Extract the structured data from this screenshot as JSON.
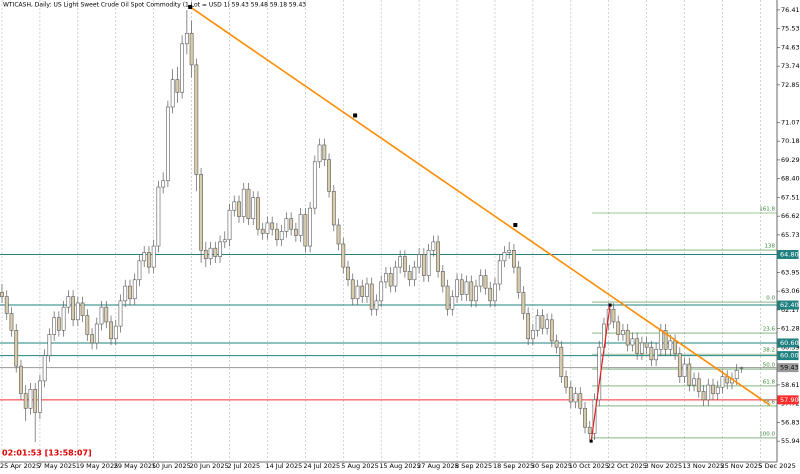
{
  "chart_data": {
    "type": "candlestick",
    "title": "WTICASH, Daily:  US Light Sweet Crude Oil Spot Commodity  (1 Lot = USD 1)  59.43 59.48 59.18 59.43",
    "timer": "02:01:53 [13:58:07]",
    "ylim": [
      54.95,
      76.88
    ],
    "yticks": [
      {
        "value": 76.41,
        "label": "76.41"
      },
      {
        "value": 75.53,
        "label": "75.53"
      },
      {
        "value": 74.63,
        "label": "74.63"
      },
      {
        "value": 73.74,
        "label": "73.74"
      },
      {
        "value": 72.85,
        "label": "72.85"
      },
      {
        "value": 71.07,
        "label": "71.07"
      },
      {
        "value": 70.18,
        "label": "70.18"
      },
      {
        "value": 69.29,
        "label": "69.29"
      },
      {
        "value": 68.4,
        "label": "68.40"
      },
      {
        "value": 67.51,
        "label": "67.51"
      },
      {
        "value": 66.62,
        "label": "66.62"
      },
      {
        "value": 65.73,
        "label": "65.73"
      },
      {
        "value": 63.95,
        "label": "63.95"
      },
      {
        "value": 63.06,
        "label": "63.06"
      },
      {
        "value": 62.17,
        "label": "62.17"
      },
      {
        "value": 61.28,
        "label": "61.28"
      },
      {
        "value": 60.39,
        "label": "60.39"
      },
      {
        "value": 58.61,
        "label": "58.61"
      },
      {
        "value": 57.72,
        "label": "57.72"
      },
      {
        "value": 56.83,
        "label": "56.83"
      },
      {
        "value": 55.94,
        "label": "55.94"
      }
    ],
    "dates": [
      "25 Apr 2025",
      "7 May 2025",
      "19 May 2025",
      "29 May 2025",
      "10 Jun 2025",
      "20 Jun 2025",
      "2 Jul 2025",
      "14 Jul 2025",
      "24 Jul 2025",
      "5 Aug 2025",
      "15 Aug 2025",
      "27 Aug 2025",
      "8 Sep 2025",
      "18 Sep 2025",
      "30 Sep 2025",
      "10 Oct 2025",
      "22 Oct 2025",
      "3 Nov 2025",
      "13 Nov 2025",
      "25 Nov 2025",
      "5 Dec 2025"
    ],
    "up_color": "#ffffff",
    "down_color": "#d9ccaa",
    "outline_color": "#5a5a5a",
    "candles": [
      [
        63.0,
        63.4,
        62.5,
        62.8
      ],
      [
        62.8,
        63.1,
        61.7,
        62.0
      ],
      [
        62.0,
        62.3,
        60.9,
        61.2
      ],
      [
        61.2,
        61.5,
        59.2,
        59.5
      ],
      [
        59.5,
        59.8,
        57.9,
        58.2
      ],
      [
        58.2,
        58.6,
        56.9,
        57.5
      ],
      [
        57.5,
        58.7,
        57.2,
        58.4
      ],
      [
        58.4,
        58.7,
        55.9,
        57.3
      ],
      [
        57.3,
        59.1,
        57.0,
        58.8
      ],
      [
        58.8,
        60.3,
        58.5,
        60.0
      ],
      [
        60.0,
        61.3,
        59.7,
        61.0
      ],
      [
        61.0,
        62.1,
        60.7,
        61.8
      ],
      [
        61.8,
        62.1,
        60.9,
        61.2
      ],
      [
        61.2,
        62.6,
        60.9,
        62.3
      ],
      [
        62.3,
        63.1,
        62.0,
        62.8
      ],
      [
        62.8,
        63.1,
        61.4,
        61.7
      ],
      [
        61.7,
        62.8,
        61.4,
        62.5
      ],
      [
        62.5,
        62.8,
        61.6,
        61.9
      ],
      [
        61.9,
        62.2,
        60.7,
        61.0
      ],
      [
        61.0,
        61.3,
        60.3,
        60.6
      ],
      [
        60.6,
        61.8,
        60.3,
        61.5
      ],
      [
        61.5,
        62.6,
        61.2,
        62.3
      ],
      [
        62.3,
        62.6,
        61.3,
        61.6
      ],
      [
        61.6,
        61.9,
        60.5,
        60.8
      ],
      [
        60.8,
        61.7,
        60.5,
        61.4
      ],
      [
        61.4,
        62.9,
        61.1,
        62.6
      ],
      [
        62.6,
        63.6,
        62.3,
        63.3
      ],
      [
        63.3,
        63.6,
        62.4,
        62.7
      ],
      [
        62.7,
        63.9,
        62.4,
        63.6
      ],
      [
        63.6,
        64.8,
        63.3,
        64.5
      ],
      [
        64.5,
        65.2,
        64.2,
        64.9
      ],
      [
        64.9,
        65.2,
        63.9,
        64.2
      ],
      [
        64.2,
        65.5,
        63.9,
        65.2
      ],
      [
        65.2,
        68.3,
        64.9,
        68.0
      ],
      [
        68.0,
        68.7,
        67.7,
        68.3
      ],
      [
        68.3,
        72.1,
        68.0,
        71.8
      ],
      [
        71.8,
        73.6,
        71.5,
        73.1
      ],
      [
        73.1,
        73.7,
        72.0,
        72.5
      ],
      [
        72.5,
        75.2,
        72.2,
        74.8
      ],
      [
        74.8,
        76.4,
        74.3,
        75.3
      ],
      [
        75.3,
        75.9,
        73.2,
        73.8
      ],
      [
        73.8,
        74.1,
        67.8,
        68.6
      ],
      [
        68.6,
        68.9,
        64.4,
        65.0
      ],
      [
        65.0,
        65.4,
        64.2,
        64.6
      ],
      [
        64.6,
        65.4,
        64.3,
        65.1
      ],
      [
        65.1,
        65.4,
        64.4,
        64.7
      ],
      [
        64.7,
        65.7,
        64.4,
        65.4
      ],
      [
        65.4,
        65.9,
        65.1,
        65.5
      ],
      [
        65.5,
        67.2,
        65.2,
        66.9
      ],
      [
        66.9,
        67.6,
        66.6,
        67.3
      ],
      [
        67.3,
        67.6,
        66.3,
        66.6
      ],
      [
        66.6,
        68.2,
        66.3,
        67.9
      ],
      [
        67.9,
        68.2,
        66.2,
        66.5
      ],
      [
        66.5,
        67.8,
        66.2,
        67.5
      ],
      [
        67.5,
        67.8,
        65.7,
        66.0
      ],
      [
        66.0,
        66.3,
        65.5,
        65.8
      ],
      [
        65.8,
        66.6,
        65.5,
        66.3
      ],
      [
        66.3,
        66.6,
        65.7,
        66.0
      ],
      [
        66.0,
        66.3,
        65.2,
        65.5
      ],
      [
        65.5,
        66.2,
        65.2,
        65.9
      ],
      [
        65.9,
        66.8,
        65.6,
        66.5
      ],
      [
        66.5,
        66.8,
        65.7,
        66.0
      ],
      [
        66.0,
        66.3,
        65.4,
        65.7
      ],
      [
        65.7,
        67.0,
        65.4,
        66.7
      ],
      [
        66.7,
        67.0,
        64.9,
        65.2
      ],
      [
        65.2,
        67.3,
        64.9,
        67.0
      ],
      [
        67.0,
        69.5,
        66.7,
        69.2
      ],
      [
        69.2,
        70.3,
        68.9,
        70.0
      ],
      [
        70.0,
        70.3,
        69.0,
        69.3
      ],
      [
        69.3,
        69.6,
        67.5,
        67.8
      ],
      [
        67.8,
        68.1,
        65.9,
        66.2
      ],
      [
        66.2,
        66.5,
        65.0,
        65.3
      ],
      [
        65.3,
        65.6,
        63.9,
        64.2
      ],
      [
        64.2,
        64.5,
        63.3,
        63.6
      ],
      [
        63.6,
        63.9,
        62.4,
        62.7
      ],
      [
        62.7,
        63.6,
        62.4,
        63.3
      ],
      [
        63.3,
        63.6,
        62.5,
        62.8
      ],
      [
        62.8,
        63.7,
        62.5,
        63.4
      ],
      [
        63.4,
        63.7,
        61.9,
        62.2
      ],
      [
        62.2,
        62.9,
        61.9,
        62.6
      ],
      [
        62.6,
        63.8,
        62.3,
        63.5
      ],
      [
        63.5,
        64.2,
        63.2,
        63.9
      ],
      [
        63.9,
        64.2,
        63.0,
        63.3
      ],
      [
        63.3,
        64.5,
        63.0,
        64.2
      ],
      [
        64.2,
        65.0,
        63.9,
        64.7
      ],
      [
        64.7,
        65.0,
        63.7,
        64.0
      ],
      [
        64.0,
        64.3,
        63.3,
        63.6
      ],
      [
        63.6,
        64.5,
        63.3,
        64.2
      ],
      [
        64.2,
        65.1,
        63.9,
        64.8
      ],
      [
        64.8,
        65.1,
        63.5,
        63.8
      ],
      [
        63.8,
        65.3,
        63.5,
        65.0
      ],
      [
        65.0,
        65.7,
        64.7,
        65.4
      ],
      [
        65.4,
        65.7,
        63.7,
        64.0
      ],
      [
        64.0,
        64.3,
        63.0,
        63.3
      ],
      [
        63.3,
        63.6,
        61.9,
        62.2
      ],
      [
        62.2,
        63.1,
        61.9,
        62.8
      ],
      [
        62.8,
        63.9,
        62.5,
        63.6
      ],
      [
        63.6,
        63.9,
        62.6,
        62.9
      ],
      [
        62.9,
        63.8,
        62.6,
        63.5
      ],
      [
        63.5,
        63.8,
        62.3,
        62.6
      ],
      [
        62.6,
        63.6,
        62.3,
        63.3
      ],
      [
        63.3,
        64.1,
        63.0,
        63.8
      ],
      [
        63.8,
        64.1,
        62.9,
        63.2
      ],
      [
        63.2,
        63.5,
        62.3,
        62.6
      ],
      [
        62.6,
        63.7,
        62.3,
        63.4
      ],
      [
        63.4,
        64.8,
        63.1,
        64.5
      ],
      [
        64.5,
        65.2,
        64.2,
        64.9
      ],
      [
        64.9,
        65.4,
        64.6,
        65.0
      ],
      [
        65.0,
        65.3,
        63.9,
        64.2
      ],
      [
        64.2,
        64.5,
        62.7,
        63.0
      ],
      [
        63.0,
        63.3,
        61.7,
        62.0
      ],
      [
        62.0,
        62.3,
        60.5,
        60.8
      ],
      [
        60.8,
        61.5,
        60.5,
        61.2
      ],
      [
        61.2,
        62.2,
        60.9,
        61.9
      ],
      [
        61.9,
        62.2,
        61.0,
        61.3
      ],
      [
        61.3,
        62.0,
        61.0,
        61.7
      ],
      [
        61.7,
        62.0,
        60.4,
        60.7
      ],
      [
        60.7,
        61.0,
        60.1,
        60.4
      ],
      [
        60.4,
        60.7,
        58.7,
        59.0
      ],
      [
        59.0,
        59.3,
        58.2,
        58.5
      ],
      [
        58.5,
        58.8,
        57.5,
        57.8
      ],
      [
        57.8,
        58.5,
        57.5,
        58.2
      ],
      [
        58.2,
        58.5,
        57.2,
        57.5
      ],
      [
        57.5,
        57.8,
        56.3,
        56.6
      ],
      [
        56.6,
        56.9,
        55.9,
        56.3
      ],
      [
        56.3,
        58.2,
        56.0,
        57.9
      ],
      [
        57.9,
        60.7,
        57.6,
        60.4
      ],
      [
        60.4,
        61.8,
        60.1,
        61.5
      ],
      [
        61.5,
        62.5,
        61.2,
        62.2
      ],
      [
        62.2,
        62.5,
        61.3,
        61.6
      ],
      [
        61.6,
        61.9,
        60.7,
        61.0
      ],
      [
        61.0,
        61.5,
        60.7,
        61.2
      ],
      [
        61.2,
        61.5,
        60.2,
        60.5
      ],
      [
        60.5,
        61.1,
        60.2,
        60.8
      ],
      [
        60.8,
        61.1,
        59.8,
        60.1
      ],
      [
        60.1,
        60.9,
        59.8,
        60.6
      ],
      [
        60.6,
        60.9,
        60.1,
        60.4
      ],
      [
        60.4,
        60.7,
        59.5,
        59.8
      ],
      [
        59.8,
        60.6,
        59.5,
        60.3
      ],
      [
        60.3,
        61.5,
        60.0,
        61.2
      ],
      [
        61.2,
        61.5,
        60.0,
        60.3
      ],
      [
        60.3,
        61.0,
        60.0,
        60.7
      ],
      [
        60.7,
        61.0,
        59.8,
        60.1
      ],
      [
        60.1,
        60.4,
        58.7,
        59.0
      ],
      [
        59.0,
        59.9,
        58.7,
        59.6
      ],
      [
        59.6,
        59.9,
        58.3,
        58.6
      ],
      [
        58.6,
        59.2,
        58.3,
        58.9
      ],
      [
        58.9,
        59.2,
        58.0,
        58.3
      ],
      [
        58.3,
        58.6,
        57.6,
        57.9
      ],
      [
        57.9,
        58.9,
        57.6,
        58.6
      ],
      [
        58.6,
        58.9,
        57.9,
        58.2
      ],
      [
        58.2,
        58.8,
        57.9,
        58.5
      ],
      [
        58.5,
        59.3,
        58.2,
        59.0
      ],
      [
        59.0,
        59.3,
        58.4,
        58.7
      ],
      [
        58.7,
        59.2,
        58.4,
        58.9
      ],
      [
        58.9,
        59.6,
        58.6,
        59.3
      ],
      [
        59.43,
        59.48,
        59.18,
        59.43
      ]
    ],
    "hlines": [
      {
        "value": 64.8,
        "label": "64.80",
        "color": "#1f8080",
        "text_color": "#ffffff"
      },
      {
        "value": 62.4,
        "label": "62.40",
        "color": "#1f8080",
        "text_color": "#ffffff"
      },
      {
        "value": 60.6,
        "label": "60.60",
        "color": "#1f8080",
        "text_color": "#ffffff"
      },
      {
        "value": 60.0,
        "label": "60.00",
        "color": "#1f8080",
        "text_color": "#ffffff"
      },
      {
        "value": 59.43,
        "label": "59.43",
        "color": "#9a9a9a",
        "text_color": "#000000"
      },
      {
        "value": 57.9,
        "label": "57.90",
        "color": "#ff2a2a",
        "text_color": "#ffffff"
      }
    ],
    "fib_color": "#3a8a3a",
    "fib_levels": [
      {
        "value": 66.77,
        "label": "161.8"
      },
      {
        "value": 65.01,
        "label": "138"
      },
      {
        "value": 62.54,
        "label": "0.0"
      },
      {
        "value": 61.07,
        "label": "23.6"
      },
      {
        "value": 60.07,
        "label": "38.2"
      },
      {
        "value": 59.36,
        "label": "50.0"
      },
      {
        "value": 58.56,
        "label": "61.8"
      },
      {
        "value": 57.61,
        "label": "78.6"
      },
      {
        "value": 56.09,
        "label": "100.0"
      }
    ],
    "fib_start": 124.5,
    "trendline": {
      "color": "#ff8c00",
      "points": [
        [
          39.7,
          76.55
        ],
        [
          74.5,
          71.4
        ],
        [
          108.3,
          66.2
        ],
        [
          162,
          57.65
        ]
      ],
      "anchors": [
        1,
        2
      ]
    },
    "fib_base": {
      "color": "#e02020",
      "points": [
        [
          124.3,
          55.94
        ],
        [
          128.3,
          62.4
        ]
      ]
    }
  }
}
